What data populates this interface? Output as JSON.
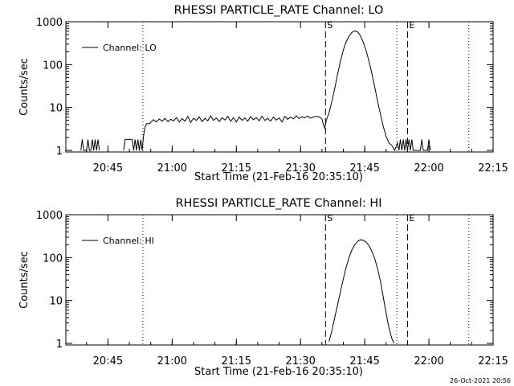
{
  "footer": {
    "timestamp": "26-Oct-2021 20:56"
  },
  "chart_data": [
    {
      "type": "line",
      "title": "RHESSI PARTICLE_RATE Channel: LO",
      "xlabel": "Start Time (21-Feb-16 20:35:10)",
      "ylabel": "Counts/sec",
      "yscale": "log",
      "ylim": [
        1,
        1000
      ],
      "xlim": [
        "20:35:10",
        "22:15:00"
      ],
      "x_ticks": [
        "20:45",
        "21:00",
        "21:15",
        "21:30",
        "21:45",
        "22:00",
        "22:15"
      ],
      "y_ticks": [
        "1",
        "10",
        "100",
        "1000"
      ],
      "legend": {
        "position": "top-left",
        "label": "Channel: LO"
      },
      "markers": [
        {
          "time": "20:53:10",
          "style": "dotted",
          "label": ""
        },
        {
          "time": "21:35:50",
          "style": "dashed",
          "label": "S"
        },
        {
          "time": "21:52:30",
          "style": "dotted",
          "label": ""
        },
        {
          "time": "21:55:00",
          "style": "dashed",
          "label": "E"
        },
        {
          "time": "22:09:20",
          "style": "dotted",
          "label": ""
        }
      ],
      "series": [
        {
          "name": "Channel: LO",
          "x": [
            "20:38:40",
            "20:39:00",
            "20:39:20",
            "20:39:40",
            "20:40:00",
            "20:40:20",
            "20:40:40",
            "20:41:00",
            "20:41:20",
            "20:41:40",
            "20:42:00",
            "20:42:20",
            "20:42:40",
            "20:43:00",
            "20:48:40",
            "20:49:00",
            "20:49:40",
            "20:50:40",
            "20:51:00",
            "20:51:20",
            "20:51:40",
            "20:52:00",
            "20:52:20",
            "20:52:40",
            "20:53:00",
            "20:53:20",
            "20:53:40",
            "20:54:00",
            "20:54:20",
            "20:54:40",
            "20:55:00",
            "20:55:40",
            "20:56:20",
            "20:57:00",
            "20:57:40",
            "20:58:20",
            "20:59:00",
            "20:59:40",
            "21:00:20",
            "21:01:00",
            "21:01:40",
            "21:02:20",
            "21:03:00",
            "21:03:40",
            "21:04:20",
            "21:05:00",
            "21:05:40",
            "21:06:20",
            "21:07:00",
            "21:07:40",
            "21:08:20",
            "21:09:00",
            "21:09:40",
            "21:10:20",
            "21:11:00",
            "21:11:40",
            "21:12:20",
            "21:13:00",
            "21:13:40",
            "21:14:20",
            "21:15:00",
            "21:15:40",
            "21:16:20",
            "21:17:00",
            "21:17:40",
            "21:18:20",
            "21:19:00",
            "21:19:40",
            "21:20:20",
            "21:21:00",
            "21:21:40",
            "21:22:20",
            "21:23:00",
            "21:23:40",
            "21:24:20",
            "21:25:00",
            "21:25:40",
            "21:26:20",
            "21:27:00",
            "21:27:40",
            "21:28:20",
            "21:29:00",
            "21:29:40",
            "21:30:20",
            "21:31:00",
            "21:31:40",
            "21:32:20",
            "21:33:00",
            "21:33:40",
            "21:34:20",
            "21:35:00",
            "21:35:20",
            "21:35:40",
            "21:36:00",
            "21:36:40",
            "21:37:20",
            "21:38:00",
            "21:38:40",
            "21:39:20",
            "21:40:00",
            "21:40:40",
            "21:41:20",
            "21:42:00",
            "21:42:40",
            "21:43:20",
            "21:44:00",
            "21:44:40",
            "21:45:20",
            "21:46:00",
            "21:46:40",
            "21:47:20",
            "21:48:00",
            "21:48:40",
            "21:49:20",
            "21:50:00",
            "21:50:40",
            "21:51:20",
            "21:52:00",
            "21:52:40",
            "21:53:00",
            "21:53:20",
            "21:53:40",
            "21:54:00",
            "21:54:20",
            "21:54:40",
            "21:55:00",
            "21:55:20",
            "21:55:40",
            "21:56:00",
            "21:56:20",
            "21:58:00",
            "21:58:20",
            "21:58:40",
            "21:59:40",
            "22:00:00",
            "22:00:20"
          ],
          "values": [
            1,
            1.8,
            1,
            1,
            1,
            1.8,
            1,
            1,
            1.8,
            1,
            1.8,
            1,
            1.8,
            1,
            1,
            1.8,
            1.8,
            1.8,
            1,
            1.8,
            1,
            1.8,
            1,
            1.8,
            1,
            2.2,
            3.5,
            4.2,
            4.2,
            4.2,
            4.5,
            5.2,
            4.6,
            5.4,
            4.8,
            5.6,
            4.7,
            5.3,
            4.9,
            5.8,
            4.6,
            5.5,
            4.8,
            6.2,
            4.5,
            5.6,
            5.0,
            6.0,
            4.7,
            5.6,
            4.9,
            6.4,
            5.0,
            5.7,
            4.7,
            5.8,
            5.1,
            6.2,
            4.8,
            5.8,
            4.6,
            6.0,
            5.0,
            5.7,
            4.8,
            6.1,
            5.2,
            5.8,
            4.9,
            6.3,
            5.0,
            5.6,
            4.8,
            6.0,
            5.1,
            5.7,
            4.6,
            6.2,
            5.3,
            6.0,
            5.4,
            6.4,
            5.5,
            6.1,
            5.8,
            6.3,
            5.6,
            6.0,
            6.2,
            6.1,
            5.4,
            4.0,
            3.3,
            5.0,
            7.5,
            14,
            28,
            60,
            120,
            220,
            340,
            460,
            560,
            610,
            580,
            470,
            330,
            210,
            120,
            62,
            30,
            14,
            7,
            3.6,
            2.1,
            1.5,
            1.3,
            1,
            1.5,
            1,
            1.8,
            1,
            1.8,
            1,
            1.8,
            1,
            1.8,
            1,
            1.8,
            1,
            1,
            1.8,
            1,
            1,
            1.8,
            1
          ]
        }
      ]
    },
    {
      "type": "line",
      "title": "RHESSI PARTICLE_RATE Channel: HI",
      "xlabel": "Start Time (21-Feb-16 20:35:10)",
      "ylabel": "Counts/sec",
      "yscale": "log",
      "ylim": [
        1,
        1000
      ],
      "xlim": [
        "20:35:10",
        "22:15:00"
      ],
      "x_ticks": [
        "20:45",
        "21:00",
        "21:15",
        "21:30",
        "21:45",
        "22:00",
        "22:15"
      ],
      "y_ticks": [
        "1",
        "10",
        "100",
        "1000"
      ],
      "legend": {
        "position": "top-left",
        "label": "Channel: HI"
      },
      "markers": [
        {
          "time": "20:53:10",
          "style": "dotted",
          "label": ""
        },
        {
          "time": "21:35:50",
          "style": "dashed",
          "label": "S"
        },
        {
          "time": "21:52:30",
          "style": "dotted",
          "label": ""
        },
        {
          "time": "21:55:00",
          "style": "dashed",
          "label": "E"
        },
        {
          "time": "22:09:20",
          "style": "dotted",
          "label": ""
        }
      ],
      "series": [
        {
          "name": "Channel: HI",
          "x": [
            "21:36:40",
            "21:37:20",
            "21:38:00",
            "21:38:40",
            "21:39:20",
            "21:40:00",
            "21:40:40",
            "21:41:20",
            "21:42:00",
            "21:42:40",
            "21:43:20",
            "21:44:00",
            "21:44:40",
            "21:45:20",
            "21:46:00",
            "21:46:40",
            "21:47:20",
            "21:48:00",
            "21:48:40",
            "21:49:20",
            "21:50:00",
            "21:50:40",
            "21:51:20",
            "21:51:50"
          ],
          "values": [
            1.1,
            2.0,
            4.0,
            8,
            16,
            32,
            60,
            100,
            150,
            200,
            240,
            260,
            255,
            230,
            190,
            140,
            95,
            55,
            28,
            12,
            5,
            2.3,
            1.3,
            1
          ]
        }
      ]
    }
  ]
}
